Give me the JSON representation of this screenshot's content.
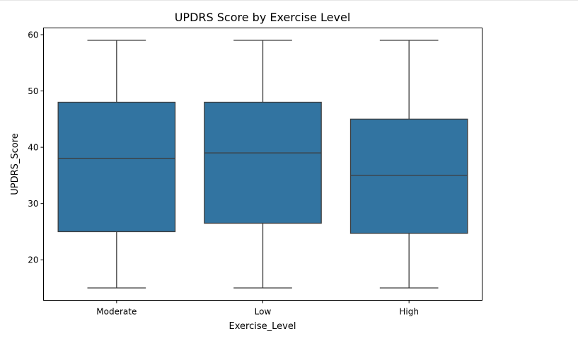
{
  "chart_data": {
    "type": "box",
    "title": "UPDRS Score by Exercise Level",
    "xlabel": "Exercise_Level",
    "ylabel": "UPDRS_Score",
    "categories": [
      "Moderate",
      "Low",
      "High"
    ],
    "boxes": [
      {
        "category": "Moderate",
        "whisker_low": 15,
        "q1": 25.0,
        "median": 38.0,
        "q3": 48.0,
        "whisker_high": 59
      },
      {
        "category": "Low",
        "whisker_low": 15,
        "q1": 26.5,
        "median": 39.0,
        "q3": 48.0,
        "whisker_high": 59
      },
      {
        "category": "High",
        "whisker_low": 15,
        "q1": 24.7,
        "median": 35.0,
        "q3": 45.0,
        "whisker_high": 59
      }
    ],
    "yticks": [
      20,
      30,
      40,
      50,
      60
    ],
    "ylim": [
      12.8,
      61.2
    ],
    "grid": false,
    "box_color": "#3274a1",
    "line_color": "#3d3d3d"
  }
}
